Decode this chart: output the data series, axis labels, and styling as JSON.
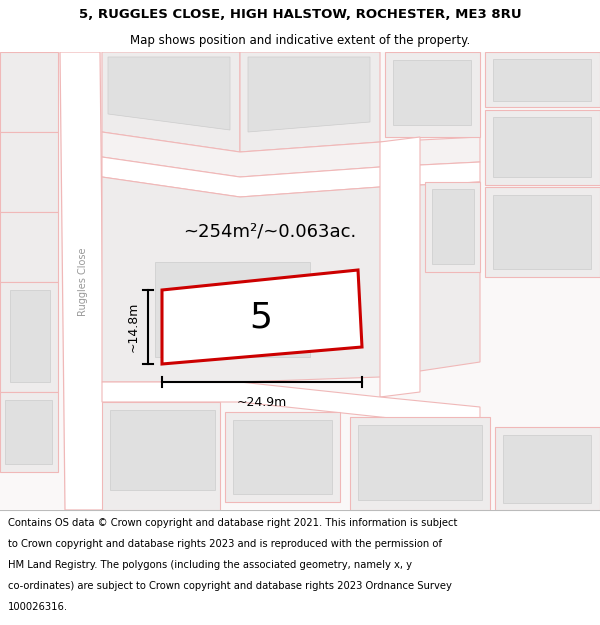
{
  "title_line1": "5, RUGGLES CLOSE, HIGH HALSTOW, ROCHESTER, ME3 8RU",
  "title_line2": "Map shows position and indicative extent of the property.",
  "area_text": "~254m²/~0.063ac.",
  "plot_number": "5",
  "dim_width": "~24.9m",
  "dim_height": "~14.8m",
  "road_label": "Ruggles Close",
  "map_bg": "#ffffff",
  "plot_fill": "#ffffff",
  "plot_border": "#cc0000",
  "building_fill": "#e0e0e0",
  "road_line": "#f0b8b8",
  "road_fill": "#ffffff",
  "plot_land_fill": "#eeecec",
  "title_fontsize": 9.5,
  "subtitle_fontsize": 8.5,
  "footer_fontsize": 7.2,
  "footer_lines": [
    "Contains OS data © Crown copyright and database right 2021. This information is subject",
    "to Crown copyright and database rights 2023 and is reproduced with the permission of",
    "HM Land Registry. The polygons (including the associated geometry, namely x, y",
    "co-ordinates) are subject to Crown copyright and database rights 2023 Ordnance Survey",
    "100026316."
  ]
}
